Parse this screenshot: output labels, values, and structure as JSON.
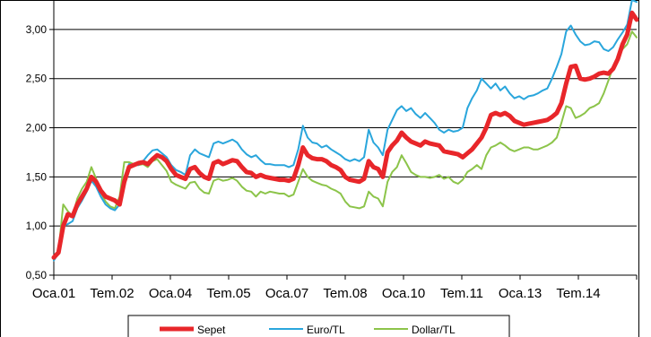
{
  "chart_data": {
    "type": "line",
    "ylim": [
      0.5,
      3.3
    ],
    "yticks": [
      "0,50",
      "1,00",
      "1,50",
      "2,00",
      "2,50",
      "3,00"
    ],
    "xticks": [
      "Oca.01",
      "Tem.02",
      "Oca.04",
      "Tem.05",
      "Oca.07",
      "Tem.08",
      "Oca.10",
      "Tem.11",
      "Oca.13",
      "Tem.14"
    ],
    "grid": true,
    "legend_position": "bottom",
    "series": [
      {
        "name": "Sepet",
        "color": "#e8262a",
        "values": [
          0.68,
          0.73,
          1.0,
          1.12,
          1.1,
          1.22,
          1.3,
          1.38,
          1.5,
          1.45,
          1.36,
          1.3,
          1.28,
          1.26,
          1.22,
          1.45,
          1.6,
          1.62,
          1.64,
          1.65,
          1.63,
          1.68,
          1.72,
          1.7,
          1.66,
          1.58,
          1.52,
          1.5,
          1.48,
          1.58,
          1.6,
          1.54,
          1.5,
          1.48,
          1.64,
          1.66,
          1.63,
          1.65,
          1.67,
          1.66,
          1.6,
          1.55,
          1.54,
          1.5,
          1.52,
          1.5,
          1.49,
          1.48,
          1.47,
          1.47,
          1.46,
          1.48,
          1.62,
          1.8,
          1.72,
          1.69,
          1.68,
          1.68,
          1.66,
          1.62,
          1.6,
          1.57,
          1.5,
          1.47,
          1.46,
          1.45,
          1.48,
          1.66,
          1.6,
          1.58,
          1.5,
          1.75,
          1.82,
          1.87,
          1.95,
          1.9,
          1.86,
          1.84,
          1.82,
          1.86,
          1.84,
          1.83,
          1.82,
          1.76,
          1.75,
          1.74,
          1.73,
          1.7,
          1.74,
          1.78,
          1.84,
          1.9,
          2.0,
          2.13,
          2.15,
          2.13,
          2.15,
          2.12,
          2.07,
          2.05,
          2.03,
          2.04,
          2.05,
          2.06,
          2.07,
          2.08,
          2.11,
          2.15,
          2.25,
          2.45,
          2.62,
          2.63,
          2.5,
          2.49,
          2.5,
          2.52,
          2.55,
          2.56,
          2.55,
          2.6,
          2.7,
          2.85,
          2.95,
          3.17,
          3.1
        ]
      },
      {
        "name": "Euro/TL",
        "color": "#2aa6dc",
        "values": [
          0.65,
          0.72,
          1.0,
          1.02,
          1.05,
          1.18,
          1.26,
          1.35,
          1.46,
          1.4,
          1.3,
          1.22,
          1.18,
          1.16,
          1.22,
          1.5,
          1.63,
          1.62,
          1.62,
          1.66,
          1.72,
          1.77,
          1.78,
          1.74,
          1.7,
          1.62,
          1.57,
          1.55,
          1.52,
          1.72,
          1.78,
          1.74,
          1.72,
          1.7,
          1.84,
          1.86,
          1.84,
          1.86,
          1.88,
          1.85,
          1.78,
          1.73,
          1.7,
          1.72,
          1.67,
          1.63,
          1.63,
          1.62,
          1.62,
          1.62,
          1.6,
          1.62,
          1.78,
          2.02,
          1.9,
          1.85,
          1.84,
          1.8,
          1.82,
          1.78,
          1.75,
          1.72,
          1.68,
          1.66,
          1.68,
          1.66,
          1.7,
          1.98,
          1.85,
          1.8,
          1.72,
          1.98,
          2.08,
          2.18,
          2.22,
          2.17,
          2.2,
          2.14,
          2.1,
          2.15,
          2.1,
          2.05,
          1.98,
          1.95,
          1.98,
          1.96,
          1.97,
          2.0,
          2.2,
          2.3,
          2.38,
          2.5,
          2.45,
          2.4,
          2.45,
          2.38,
          2.42,
          2.35,
          2.3,
          2.32,
          2.29,
          2.32,
          2.33,
          2.35,
          2.38,
          2.4,
          2.5,
          2.62,
          2.75,
          2.98,
          3.04,
          2.95,
          2.88,
          2.84,
          2.85,
          2.88,
          2.87,
          2.8,
          2.78,
          2.82,
          2.9,
          2.97,
          3.05,
          3.3,
          3.28
        ]
      },
      {
        "name": "Dollar/TL",
        "color": "#8cc44a",
        "values": [
          0.66,
          0.74,
          1.22,
          1.15,
          1.1,
          1.28,
          1.38,
          1.45,
          1.6,
          1.48,
          1.34,
          1.25,
          1.2,
          1.18,
          1.3,
          1.65,
          1.65,
          1.63,
          1.62,
          1.63,
          1.6,
          1.66,
          1.68,
          1.62,
          1.56,
          1.45,
          1.42,
          1.4,
          1.38,
          1.44,
          1.45,
          1.38,
          1.34,
          1.33,
          1.46,
          1.48,
          1.46,
          1.47,
          1.49,
          1.46,
          1.4,
          1.36,
          1.35,
          1.3,
          1.35,
          1.33,
          1.35,
          1.34,
          1.33,
          1.33,
          1.3,
          1.32,
          1.45,
          1.58,
          1.5,
          1.46,
          1.44,
          1.42,
          1.41,
          1.38,
          1.36,
          1.33,
          1.25,
          1.2,
          1.19,
          1.18,
          1.2,
          1.35,
          1.3,
          1.28,
          1.2,
          1.45,
          1.55,
          1.6,
          1.72,
          1.64,
          1.55,
          1.52,
          1.5,
          1.5,
          1.49,
          1.5,
          1.52,
          1.48,
          1.5,
          1.45,
          1.43,
          1.47,
          1.55,
          1.58,
          1.62,
          1.58,
          1.72,
          1.8,
          1.82,
          1.85,
          1.82,
          1.78,
          1.76,
          1.78,
          1.8,
          1.8,
          1.78,
          1.78,
          1.8,
          1.82,
          1.85,
          1.9,
          2.05,
          2.22,
          2.2,
          2.1,
          2.12,
          2.15,
          2.2,
          2.22,
          2.25,
          2.35,
          2.48,
          2.62,
          2.72,
          2.8,
          2.85,
          2.98,
          2.92
        ]
      }
    ]
  }
}
